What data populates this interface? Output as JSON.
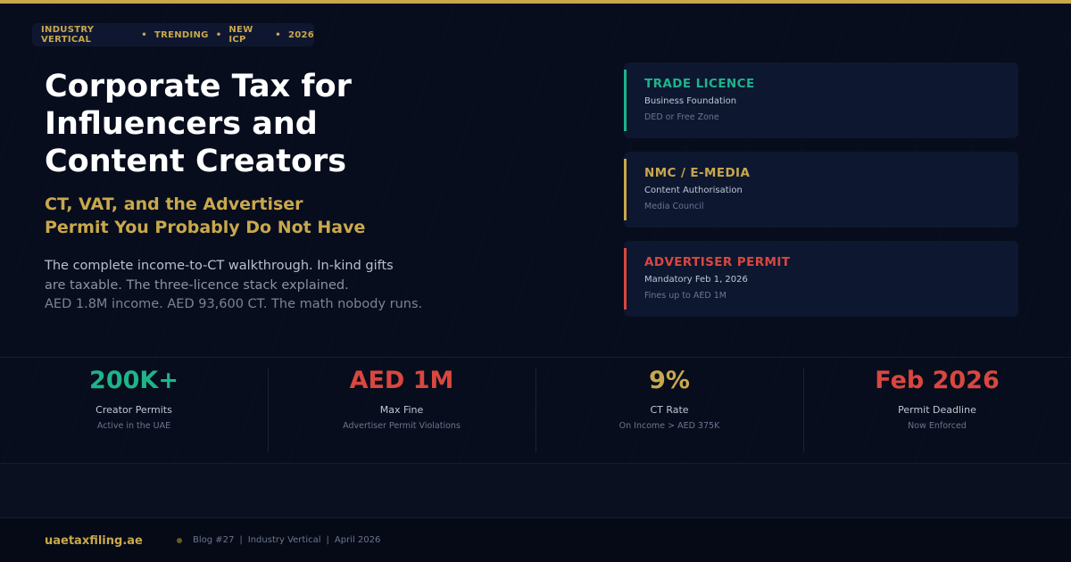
{
  "eyebrow": {
    "items": [
      "INDUSTRY VERTICAL",
      "TRENDING",
      "NEW ICP",
      "2026"
    ],
    "separator": "•"
  },
  "hero": {
    "title_lines": [
      "Corporate Tax for",
      "Influencers and",
      "Content Creators"
    ],
    "subtitle_lines": [
      "CT, VAT, and the Advertiser",
      "Permit You Probably Do Not Have"
    ],
    "description_lines": [
      "The complete income-to-CT walkthrough. In-kind gifts",
      "are taxable. The three-licence stack explained.",
      "AED 1.8M income. AED 93,600 CT. The math nobody runs."
    ]
  },
  "cards": [
    {
      "title": "TRADE LICENCE",
      "subtitle": "Business Foundation",
      "meta": "DED or Free Zone",
      "color": "#1fb38a"
    },
    {
      "title": "NMC / E-MEDIA",
      "subtitle": "Content Authorisation",
      "meta": "Media Council",
      "color": "#c9a84c"
    },
    {
      "title": "ADVERTISER PERMIT",
      "subtitle": "Mandatory Feb 1, 2026",
      "meta": "Fines up to AED 1M",
      "color": "#d9473f"
    }
  ],
  "stats": [
    {
      "value": "200K+",
      "label": "Creator Permits",
      "note": "Active in the UAE",
      "color": "#1fb38a"
    },
    {
      "value": "AED 1M",
      "label": "Max Fine",
      "note": "Advertiser Permit Violations",
      "color": "#d9473f"
    },
    {
      "value": "9%",
      "label": "CT Rate",
      "note": "On Income > AED 375K",
      "color": "#c9a84c"
    },
    {
      "value": "Feb 2026",
      "label": "Permit Deadline",
      "note": "Now Enforced",
      "color": "#d9473f"
    }
  ],
  "footer": {
    "site": "uaetaxfiling.ae",
    "meta_items": [
      "Blog #27",
      "Industry Vertical",
      "April 2026"
    ],
    "meta_separator": "|"
  }
}
